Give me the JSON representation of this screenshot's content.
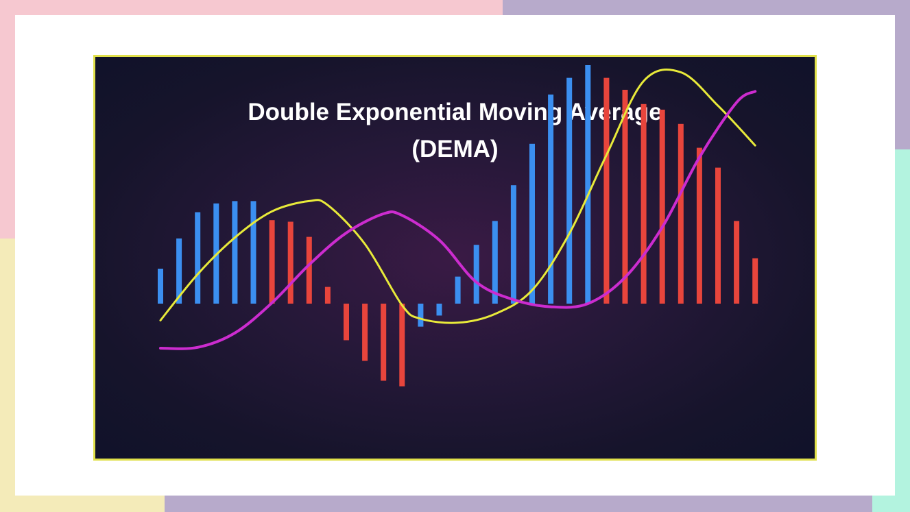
{
  "colors": {
    "page_background": "#ffffff",
    "strip_pink": "#f6c8d0",
    "strip_lavender": "#b7aacb",
    "strip_yellow": "#f4ebb9",
    "strip_mint": "#b3f3df",
    "frame_border": "#e0e04a",
    "positive_bar": "#3b8ff0",
    "negative_bar": "#e8453c",
    "yellow_line": "#e8ea3a",
    "magenta_line": "#cc2ccf"
  },
  "chart_data": {
    "type": "bar",
    "title": "Double Exponential Moving Average",
    "subtitle": "(DEMA)",
    "xlabel": "",
    "ylabel": "",
    "grid": false,
    "legend": "none",
    "ylim": [
      -1.0,
      3.0
    ],
    "bars": [
      {
        "value": 0.44,
        "color": "blue"
      },
      {
        "value": 0.82,
        "color": "blue"
      },
      {
        "value": 1.15,
        "color": "blue"
      },
      {
        "value": 1.26,
        "color": "blue"
      },
      {
        "value": 1.29,
        "color": "blue"
      },
      {
        "value": 1.29,
        "color": "blue"
      },
      {
        "value": 1.05,
        "color": "red"
      },
      {
        "value": 1.03,
        "color": "red"
      },
      {
        "value": 0.84,
        "color": "red"
      },
      {
        "value": 0.21,
        "color": "red"
      },
      {
        "value": -0.46,
        "color": "red"
      },
      {
        "value": -0.72,
        "color": "red"
      },
      {
        "value": -0.97,
        "color": "red"
      },
      {
        "value": -1.04,
        "color": "red"
      },
      {
        "value": -0.29,
        "color": "blue"
      },
      {
        "value": -0.15,
        "color": "blue"
      },
      {
        "value": 0.34,
        "color": "blue"
      },
      {
        "value": 0.74,
        "color": "blue"
      },
      {
        "value": 1.04,
        "color": "blue"
      },
      {
        "value": 1.49,
        "color": "blue"
      },
      {
        "value": 2.01,
        "color": "blue"
      },
      {
        "value": 2.63,
        "color": "blue"
      },
      {
        "value": 2.84,
        "color": "blue"
      },
      {
        "value": 3.0,
        "color": "blue"
      },
      {
        "value": 2.84,
        "color": "red"
      },
      {
        "value": 2.69,
        "color": "red"
      },
      {
        "value": 2.51,
        "color": "red"
      },
      {
        "value": 2.44,
        "color": "red"
      },
      {
        "value": 2.26,
        "color": "red"
      },
      {
        "value": 1.96,
        "color": "red"
      },
      {
        "value": 1.71,
        "color": "red"
      },
      {
        "value": 1.04,
        "color": "red"
      },
      {
        "value": 0.57,
        "color": "red"
      }
    ],
    "series": [
      {
        "color": "yellow",
        "points": [
          [
            0,
            -0.21
          ],
          [
            2,
            0.37
          ],
          [
            4,
            0.83
          ],
          [
            6,
            1.16
          ],
          [
            8,
            1.29
          ],
          [
            9,
            1.24
          ],
          [
            11,
            0.75
          ],
          [
            13,
            -0.02
          ],
          [
            14,
            -0.19
          ],
          [
            16,
            -0.24
          ],
          [
            18,
            -0.13
          ],
          [
            20,
            0.17
          ],
          [
            22,
            0.88
          ],
          [
            24,
            1.87
          ],
          [
            26,
            2.8
          ],
          [
            28,
            2.91
          ],
          [
            30,
            2.49
          ],
          [
            32,
            1.99
          ]
        ]
      },
      {
        "color": "magenta",
        "points": [
          [
            0,
            -0.56
          ],
          [
            2,
            -0.55
          ],
          [
            4,
            -0.37
          ],
          [
            6,
            0.01
          ],
          [
            8,
            0.49
          ],
          [
            10,
            0.89
          ],
          [
            12,
            1.13
          ],
          [
            13,
            1.11
          ],
          [
            15,
            0.8
          ],
          [
            17,
            0.27
          ],
          [
            19,
            0.05
          ],
          [
            21,
            -0.04
          ],
          [
            23,
            0.0
          ],
          [
            25,
            0.33
          ],
          [
            27,
            0.96
          ],
          [
            29,
            1.84
          ],
          [
            31,
            2.53
          ],
          [
            32,
            2.67
          ]
        ]
      }
    ]
  }
}
